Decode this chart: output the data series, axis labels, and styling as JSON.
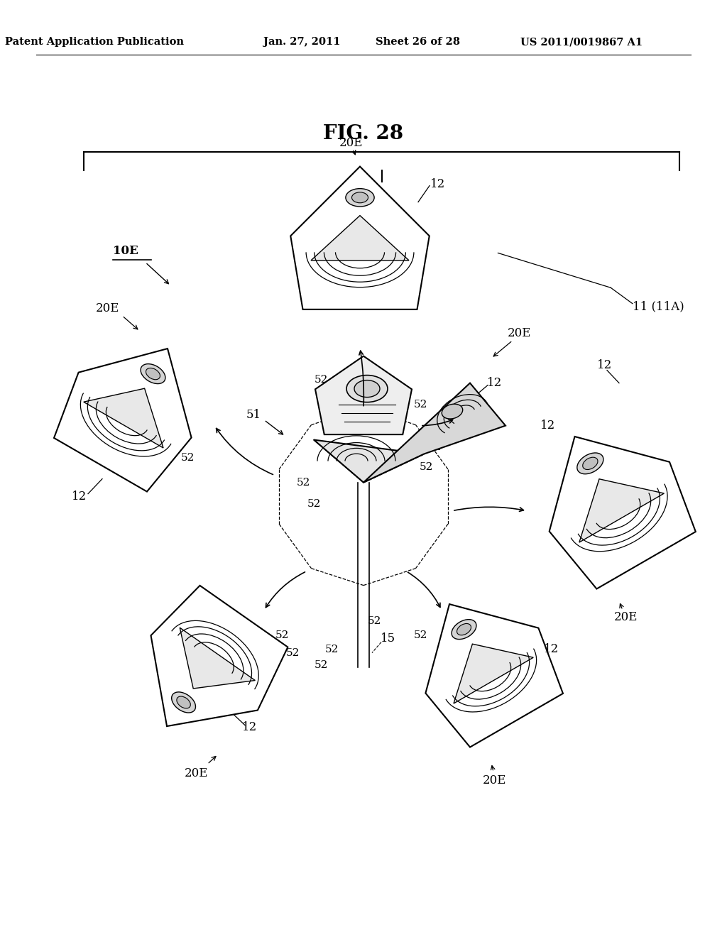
{
  "background_color": "#ffffff",
  "header_text": "Patent Application Publication",
  "header_date": "Jan. 27, 2011",
  "header_sheet": "Sheet 26 of 28",
  "header_patent": "US 2011/0019867 A1",
  "fig_label": "FIG. 28",
  "header_fontsize": 10.5,
  "label_fontsize": 12,
  "small_label_fontsize": 11
}
